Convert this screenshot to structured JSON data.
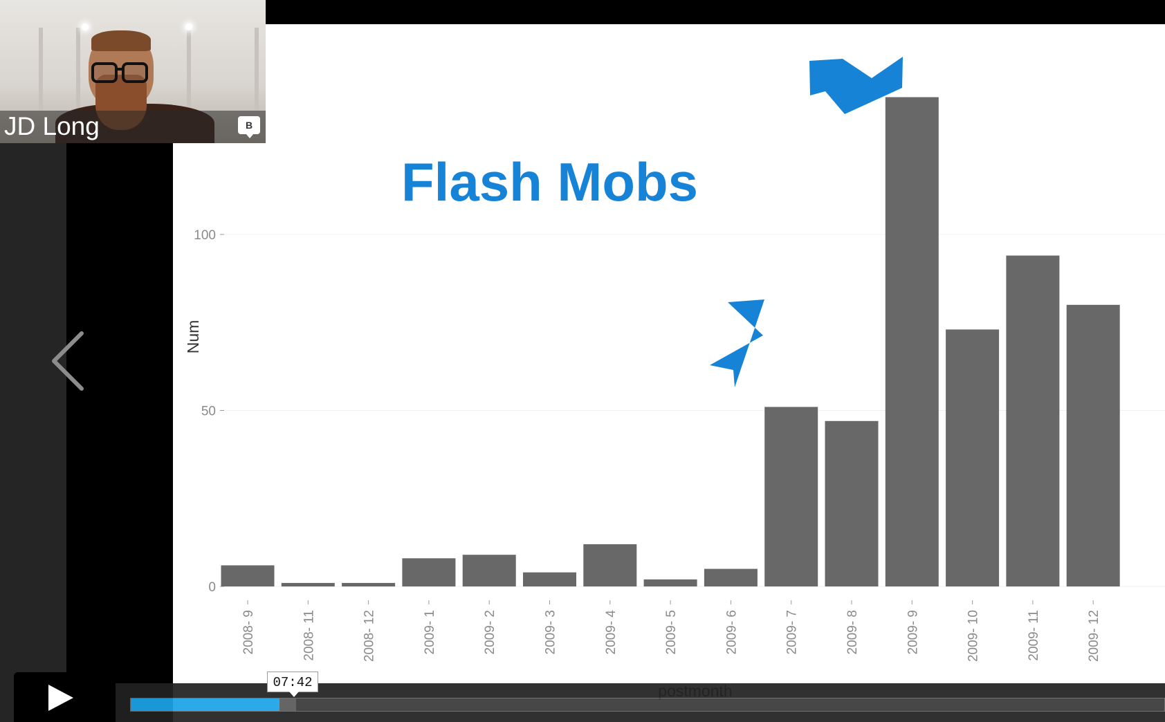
{
  "participant": {
    "name": "JD Long",
    "chat_badge": "B"
  },
  "player": {
    "current_time": "07:42",
    "progress_percent": 14.4
  },
  "icons": {
    "prev": "chevron-left-icon",
    "play": "play-icon",
    "chat": "chat-bubble-icon"
  },
  "colors": {
    "accent": "#1683d6",
    "bar": "#686868",
    "progress": "#1ba3e8"
  },
  "chart_data": {
    "type": "bar",
    "title": "Flash Mobs",
    "xlabel": "postmonth",
    "ylabel": "Num",
    "ylim": [
      0,
      140
    ],
    "yticks": [
      0,
      50,
      100
    ],
    "categories": [
      "2008- 9",
      "2008- 11",
      "2008- 12",
      "2009- 1",
      "2009- 2",
      "2009- 3",
      "2009- 4",
      "2009- 5",
      "2009- 6",
      "2009- 7",
      "2009- 8",
      "2009- 9",
      "2009- 10",
      "2009- 11",
      "2009- 12"
    ],
    "values": [
      6,
      1,
      1,
      8,
      9,
      4,
      12,
      2,
      5,
      51,
      47,
      139,
      73,
      94,
      80
    ],
    "annotations": [
      "arrow pointing to 2009- 7",
      "arrow pointing to 2009- 9"
    ]
  }
}
